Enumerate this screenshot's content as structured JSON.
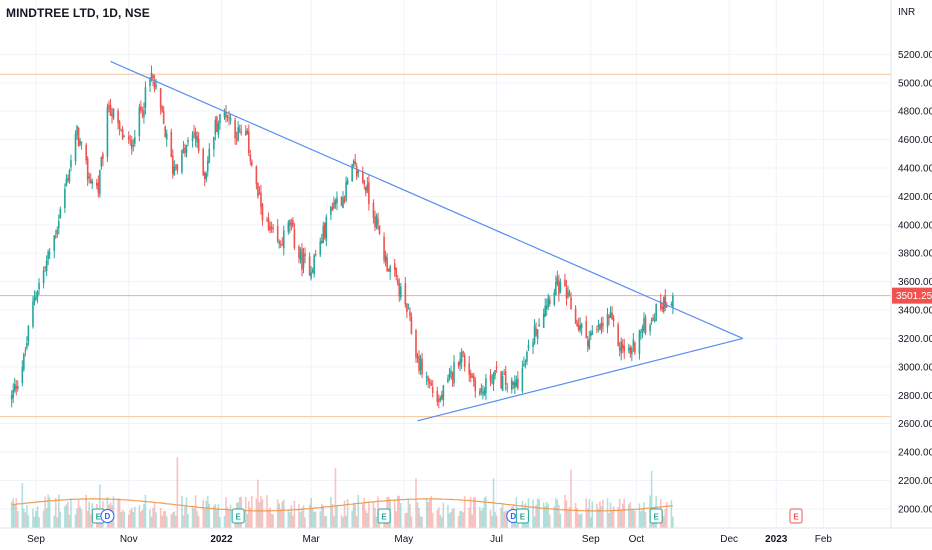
{
  "header": {
    "title": "MINDTREE LTD, 1D, NSE",
    "currency": "INR"
  },
  "colors": {
    "up": "#26a69a",
    "down": "#ef5350",
    "trend": "#5b8def",
    "hline": "#f5c79a",
    "volume_ma": "#f39a4f",
    "price_line": "#ef5350"
  },
  "chart_data": {
    "type": "candlestick",
    "title": "MINDTREE LTD, 1D, NSE",
    "currency": "INR",
    "x_ticks": [
      "Sep",
      "Nov",
      "2022",
      "Mar",
      "May",
      "Jul",
      "Sep",
      "Oct",
      "Dec",
      "2023",
      "Feb"
    ],
    "y_ticks": [
      "2000.00",
      "2200.00",
      "2400.00",
      "2600.00",
      "2800.00",
      "3000.00",
      "3200.00",
      "3400.00",
      "3600.00",
      "3800.00",
      "4000.00",
      "4200.00",
      "4400.00",
      "4600.00",
      "4800.00",
      "5000.00",
      "5200.00"
    ],
    "ylim": [
      1950,
      5280
    ],
    "current_price": "3501.25",
    "horizontal_levels": [
      5060,
      3501.25,
      2650
    ],
    "trendlines": [
      {
        "from": [
          "2021-10-20",
          5150
        ],
        "to": [
          "2022-12-10",
          3200
        ]
      },
      {
        "from": [
          "2022-05-10",
          2620
        ],
        "to": [
          "2022-12-10",
          3200
        ]
      }
    ],
    "close_anchors": [
      [
        "2021-08-16",
        2780
      ],
      [
        "2021-08-24",
        3050
      ],
      [
        "2021-08-31",
        3500
      ],
      [
        "2021-09-07",
        3700
      ],
      [
        "2021-09-14",
        3950
      ],
      [
        "2021-09-21",
        4300
      ],
      [
        "2021-09-28",
        4650
      ],
      [
        "2021-10-05",
        4350
      ],
      [
        "2021-10-12",
        4250
      ],
      [
        "2021-10-19",
        4850
      ],
      [
        "2021-10-26",
        4650
      ],
      [
        "2021-11-02",
        4550
      ],
      [
        "2021-11-09",
        4800
      ],
      [
        "2021-11-16",
        5050
      ],
      [
        "2021-11-23",
        4750
      ],
      [
        "2021-11-30",
        4400
      ],
      [
        "2021-12-07",
        4500
      ],
      [
        "2021-12-14",
        4650
      ],
      [
        "2021-12-21",
        4350
      ],
      [
        "2021-12-28",
        4700
      ],
      [
        "2022-01-04",
        4800
      ],
      [
        "2022-01-11",
        4650
      ],
      [
        "2022-01-18",
        4600
      ],
      [
        "2022-01-25",
        4200
      ],
      [
        "2022-02-01",
        3950
      ],
      [
        "2022-02-08",
        3850
      ],
      [
        "2022-02-15",
        4000
      ],
      [
        "2022-02-22",
        3750
      ],
      [
        "2022-03-01",
        3700
      ],
      [
        "2022-03-08",
        3900
      ],
      [
        "2022-03-15",
        4150
      ],
      [
        "2022-03-22",
        4200
      ],
      [
        "2022-03-29",
        4400
      ],
      [
        "2022-04-05",
        4300
      ],
      [
        "2022-04-12",
        4050
      ],
      [
        "2022-04-19",
        3750
      ],
      [
        "2022-04-26",
        3600
      ],
      [
        "2022-05-03",
        3400
      ],
      [
        "2022-05-10",
        3050
      ],
      [
        "2022-05-17",
        2900
      ],
      [
        "2022-05-24",
        2750
      ],
      [
        "2022-05-31",
        2900
      ],
      [
        "2022-06-07",
        3100
      ],
      [
        "2022-06-14",
        2950
      ],
      [
        "2022-06-21",
        2800
      ],
      [
        "2022-06-28",
        2950
      ],
      [
        "2022-07-05",
        2900
      ],
      [
        "2022-07-12",
        2850
      ],
      [
        "2022-07-19",
        3000
      ],
      [
        "2022-07-26",
        3250
      ],
      [
        "2022-08-02",
        3450
      ],
      [
        "2022-08-09",
        3580
      ],
      [
        "2022-08-16",
        3500
      ],
      [
        "2022-08-23",
        3300
      ],
      [
        "2022-08-30",
        3200
      ],
      [
        "2022-09-06",
        3250
      ],
      [
        "2022-09-13",
        3350
      ],
      [
        "2022-09-20",
        3150
      ],
      [
        "2022-09-27",
        3100
      ],
      [
        "2022-10-04",
        3250
      ],
      [
        "2022-10-11",
        3350
      ],
      [
        "2022-10-18",
        3450
      ],
      [
        "2022-10-25",
        3500
      ]
    ],
    "events": [
      {
        "label": "E",
        "kind": "earnings",
        "date": "2021-10-12"
      },
      {
        "label": "D",
        "kind": "dividend",
        "date": "2021-10-18"
      },
      {
        "label": "E",
        "kind": "earnings",
        "date": "2022-01-12"
      },
      {
        "label": "E",
        "kind": "earnings",
        "date": "2022-04-18"
      },
      {
        "label": "D",
        "kind": "dividend",
        "date": "2022-07-12"
      },
      {
        "label": "E",
        "kind": "earnings",
        "date": "2022-07-18"
      },
      {
        "label": "E",
        "kind": "earnings",
        "date": "2022-10-14"
      },
      {
        "label": "E",
        "kind": "earnings",
        "date": "2023-01-14"
      }
    ]
  }
}
